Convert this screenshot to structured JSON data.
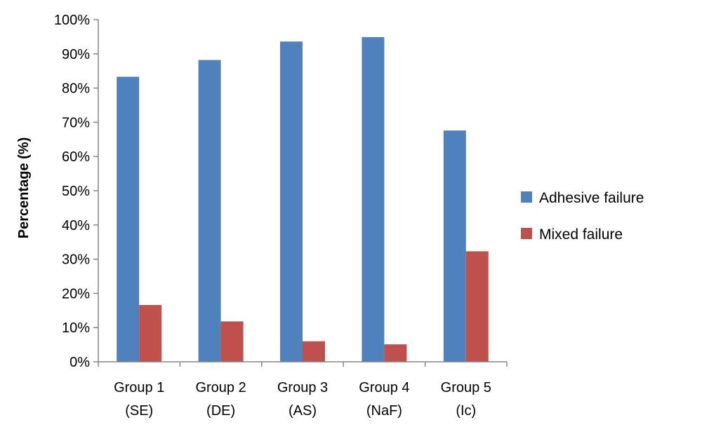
{
  "chart_data": {
    "type": "bar",
    "title": "",
    "xlabel": "",
    "ylabel": "Percentage (%)",
    "ylim": [
      0,
      100
    ],
    "yticks": [
      "0%",
      "10%",
      "20%",
      "30%",
      "40%",
      "50%",
      "60%",
      "70%",
      "80%",
      "90%",
      "100%"
    ],
    "categories": [
      [
        "Group 1",
        "(SE)"
      ],
      [
        "Group 2",
        "(DE)"
      ],
      [
        "Group 3",
        "(AS)"
      ],
      [
        "Group 4",
        "(NaF)"
      ],
      [
        "Group 5",
        "(Ic)"
      ]
    ],
    "series": [
      {
        "name": "Adhesive failure",
        "color": "#4f81bd",
        "values": [
          83.3,
          88.2,
          93.6,
          94.9,
          67.6
        ]
      },
      {
        "name": "Mixed failure",
        "color": "#c0504d",
        "values": [
          16.6,
          11.8,
          6.0,
          5.1,
          32.3
        ]
      }
    ],
    "grid": false,
    "legend_position": "right"
  }
}
